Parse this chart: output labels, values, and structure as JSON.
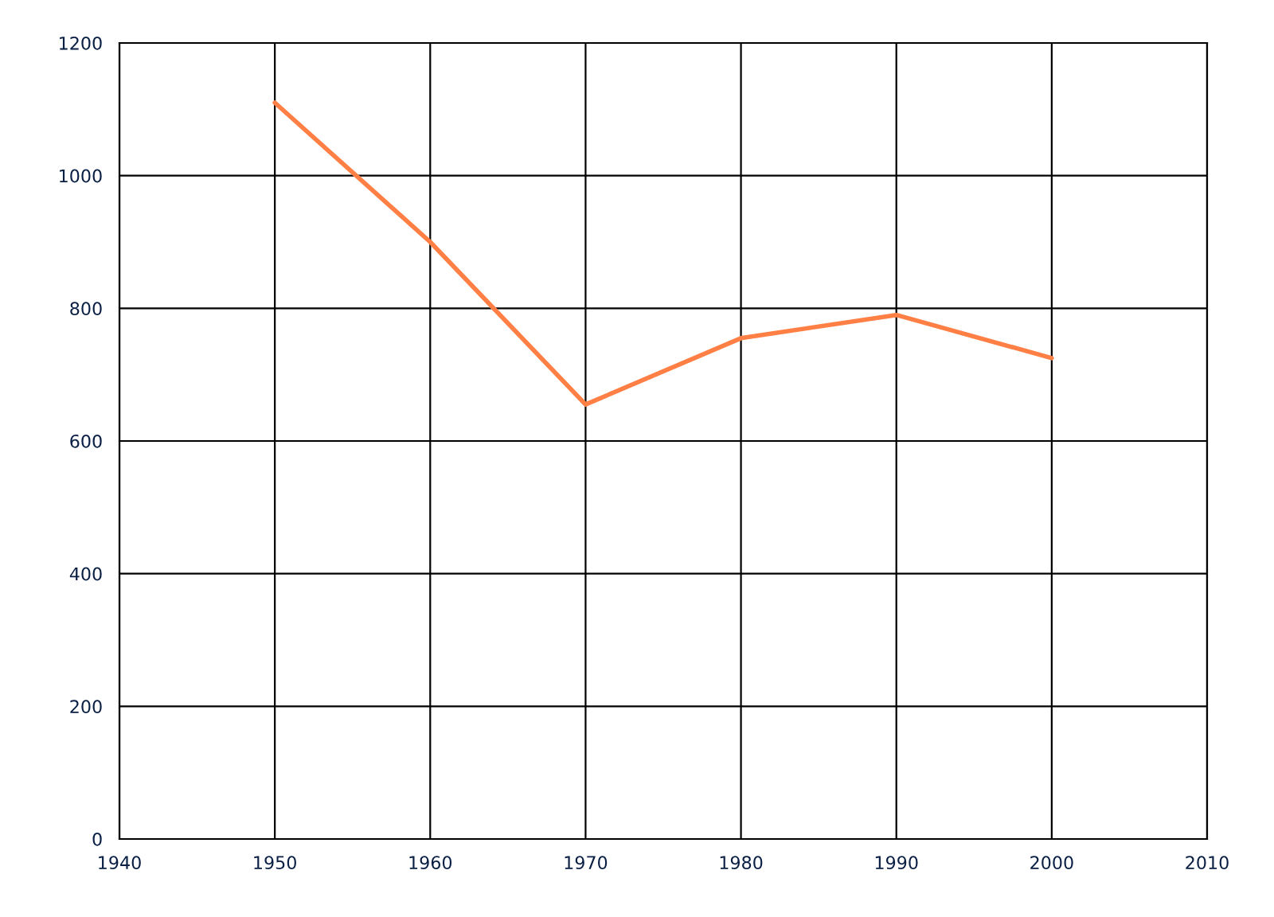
{
  "chart_data": {
    "type": "line",
    "x": [
      1950,
      1960,
      1970,
      1980,
      1990,
      2000
    ],
    "series": [
      {
        "color": "#ff7f45",
        "values": [
          1110,
          900,
          655,
          755,
          790,
          725
        ]
      }
    ],
    "xlim": [
      1940,
      2010
    ],
    "xticks": [
      1940,
      1950,
      1960,
      1970,
      1980,
      1990,
      2000,
      2010
    ],
    "ylim": [
      0,
      1200
    ],
    "yticks": [
      0,
      200,
      400,
      600,
      800,
      1000,
      1200
    ],
    "grid": true,
    "marker": "none",
    "line_style": "solid"
  }
}
